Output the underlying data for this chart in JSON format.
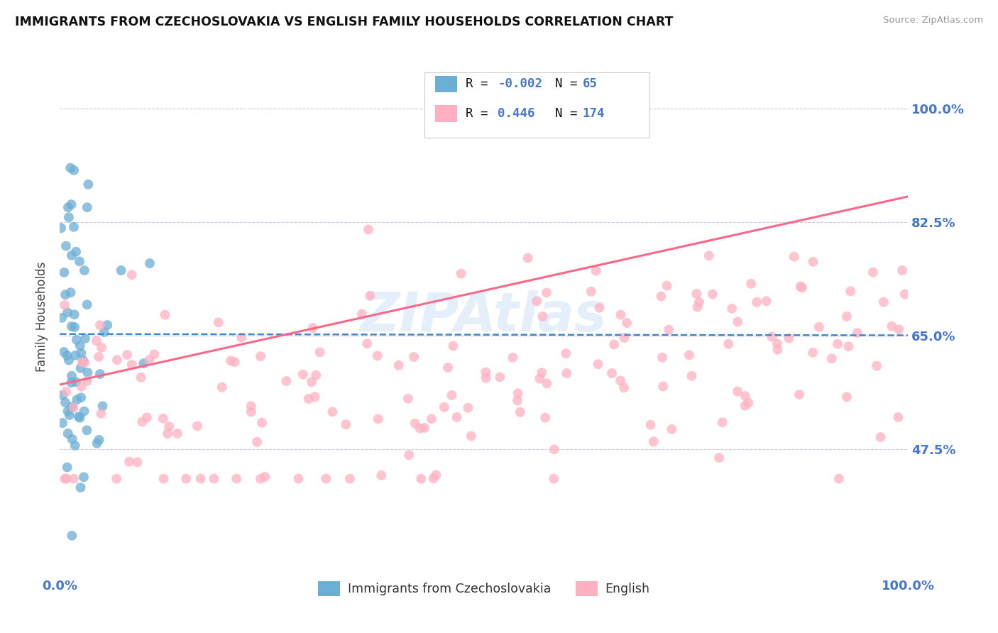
{
  "title": "IMMIGRANTS FROM CZECHOSLOVAKIA VS ENGLISH FAMILY HOUSEHOLDS CORRELATION CHART",
  "source_text": "Source: ZipAtlas.com",
  "ylabel": "Family Households",
  "legend_label_1": "Immigrants from Czechoslovakia",
  "legend_label_2": "English",
  "r1": "-0.002",
  "n1": "65",
  "r2": "0.446",
  "n2": "174",
  "color_blue": "#6BAED6",
  "color_pink": "#FFB0C0",
  "color_blue_line": "#4488CC",
  "color_pink_line": "#FF6688",
  "color_axis_labels": "#4477CC",
  "watermark": "ZIPAtlas",
  "xlim": [
    0.0,
    1.0
  ],
  "ylim": [
    0.28,
    1.08
  ],
  "yticks": [
    0.475,
    0.65,
    0.825,
    1.0
  ],
  "ytick_labels": [
    "47.5%",
    "65.0%",
    "82.5%",
    "100.0%"
  ],
  "xtick_labels": [
    "0.0%",
    "100.0%"
  ],
  "xticks": [
    0.0,
    1.0
  ],
  "blue_trendline": [
    0.0,
    1.0,
    0.653,
    0.651
  ],
  "pink_trendline": [
    0.0,
    1.0,
    0.575,
    0.865
  ]
}
